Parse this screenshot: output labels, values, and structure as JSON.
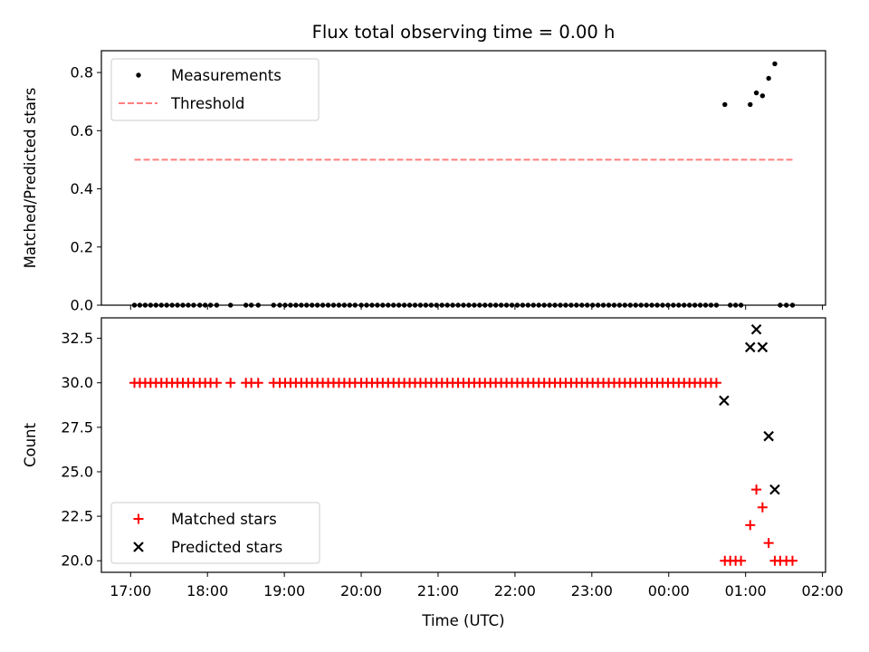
{
  "chart_data": [
    {
      "type": "scatter",
      "title": "Flux total observing time = 0.00 h",
      "xlabel": "",
      "ylabel": "Matched/Predicted stars",
      "xlim": [
        16.62,
        26.04
      ],
      "ylim": [
        0.0,
        0.875
      ],
      "yticks": [
        0.0,
        0.2,
        0.4,
        0.6,
        0.8
      ],
      "ytick_labels": [
        "0.0",
        "0.2",
        "0.4",
        "0.6",
        "0.8"
      ],
      "xticks": [
        17,
        18,
        19,
        20,
        21,
        22,
        23,
        24,
        25,
        26
      ],
      "show_xtick_labels": false,
      "legend": {
        "placement": "upper-left",
        "entries": [
          "Measurements",
          "Threshold"
        ]
      },
      "series": [
        {
          "name": "Measurements",
          "marker": "dot",
          "color": "#000000",
          "x": [
            17.05,
            17.12,
            17.19,
            17.26,
            17.33,
            17.4,
            17.47,
            17.54,
            17.61,
            17.68,
            17.75,
            17.82,
            17.9,
            17.97,
            18.04,
            18.12,
            18.3,
            18.5,
            18.57,
            18.66,
            18.86,
            18.94,
            19.01,
            19.08,
            19.15,
            19.22,
            19.29,
            19.36,
            19.43,
            19.5,
            19.57,
            19.64,
            19.71,
            19.78,
            19.85,
            19.92,
            20.0,
            20.07,
            20.14,
            20.21,
            20.28,
            20.35,
            20.42,
            20.49,
            20.56,
            20.63,
            20.7,
            20.77,
            20.84,
            20.91,
            20.98,
            21.05,
            21.12,
            21.19,
            21.26,
            21.33,
            21.4,
            21.47,
            21.54,
            21.61,
            21.68,
            21.75,
            21.82,
            21.89,
            21.96,
            22.03,
            22.1,
            22.17,
            22.24,
            22.31,
            22.38,
            22.45,
            22.52,
            22.59,
            22.66,
            22.73,
            22.8,
            22.87,
            22.94,
            23.01,
            23.08,
            23.15,
            23.22,
            23.29,
            23.36,
            23.43,
            23.5,
            23.57,
            23.64,
            23.71,
            23.78,
            23.85,
            23.92,
            23.99,
            24.06,
            24.13,
            24.2,
            24.27,
            24.34,
            24.41,
            24.48,
            24.55,
            24.62,
            24.73,
            24.8,
            24.87,
            24.94,
            25.06,
            25.14,
            25.22,
            25.3,
            25.38,
            25.45,
            25.53,
            25.61
          ],
          "y": [
            0,
            0,
            0,
            0,
            0,
            0,
            0,
            0,
            0,
            0,
            0,
            0,
            0,
            0,
            0,
            0,
            0,
            0,
            0,
            0,
            0,
            0,
            0,
            0,
            0,
            0,
            0,
            0,
            0,
            0,
            0,
            0,
            0,
            0,
            0,
            0,
            0,
            0,
            0,
            0,
            0,
            0,
            0,
            0,
            0,
            0,
            0,
            0,
            0,
            0,
            0,
            0,
            0,
            0,
            0,
            0,
            0,
            0,
            0,
            0,
            0,
            0,
            0,
            0,
            0,
            0,
            0,
            0,
            0,
            0,
            0,
            0,
            0,
            0,
            0,
            0,
            0,
            0,
            0,
            0,
            0,
            0,
            0,
            0,
            0,
            0,
            0,
            0,
            0,
            0,
            0,
            0,
            0,
            0,
            0,
            0,
            0,
            0,
            0,
            0,
            0,
            0,
            0,
            0.69,
            0,
            0,
            0,
            0.69,
            0.73,
            0.72,
            0.78,
            0.83,
            0,
            0,
            0
          ]
        },
        {
          "name": "Threshold",
          "style": "dashed",
          "color": "#ff7f7f",
          "x": [
            17.05,
            25.61
          ],
          "y": [
            0.5,
            0.5
          ]
        }
      ]
    },
    {
      "type": "scatter",
      "title": "",
      "xlabel": "Time (UTC)",
      "ylabel": "Count",
      "xlim": [
        16.62,
        26.04
      ],
      "ylim": [
        19.35,
        33.65
      ],
      "yticks": [
        20.0,
        22.5,
        25.0,
        27.5,
        30.0,
        32.5
      ],
      "ytick_labels": [
        "20.0",
        "22.5",
        "25.0",
        "27.5",
        "30.0",
        "32.5"
      ],
      "xticks": [
        17,
        18,
        19,
        20,
        21,
        22,
        23,
        24,
        25,
        26
      ],
      "xtick_labels": [
        "17:00",
        "18:00",
        "19:00",
        "20:00",
        "21:00",
        "22:00",
        "23:00",
        "00:00",
        "01:00",
        "02:00"
      ],
      "legend": {
        "placement": "lower-left",
        "entries": [
          "Matched stars",
          "Predicted stars"
        ]
      },
      "series": [
        {
          "name": "Matched stars",
          "marker": "plus",
          "color": "#ff0000",
          "x": [
            17.05,
            17.12,
            17.19,
            17.26,
            17.33,
            17.4,
            17.47,
            17.54,
            17.61,
            17.68,
            17.75,
            17.82,
            17.9,
            17.97,
            18.04,
            18.12,
            18.3,
            18.5,
            18.57,
            18.66,
            18.86,
            18.94,
            19.01,
            19.08,
            19.15,
            19.22,
            19.29,
            19.36,
            19.43,
            19.5,
            19.57,
            19.64,
            19.71,
            19.78,
            19.85,
            19.92,
            20.0,
            20.07,
            20.14,
            20.21,
            20.28,
            20.35,
            20.42,
            20.49,
            20.56,
            20.63,
            20.7,
            20.77,
            20.84,
            20.91,
            20.98,
            21.05,
            21.12,
            21.19,
            21.26,
            21.33,
            21.4,
            21.47,
            21.54,
            21.61,
            21.68,
            21.75,
            21.82,
            21.89,
            21.96,
            22.03,
            22.1,
            22.17,
            22.24,
            22.31,
            22.38,
            22.45,
            22.52,
            22.59,
            22.66,
            22.73,
            22.8,
            22.87,
            22.94,
            23.01,
            23.08,
            23.15,
            23.22,
            23.29,
            23.36,
            23.43,
            23.5,
            23.57,
            23.64,
            23.71,
            23.78,
            23.85,
            23.92,
            23.99,
            24.06,
            24.13,
            24.2,
            24.27,
            24.34,
            24.41,
            24.48,
            24.55,
            24.62,
            24.73,
            24.8,
            24.87,
            24.94,
            25.06,
            25.14,
            25.22,
            25.3,
            25.38,
            25.45,
            25.53,
            25.61
          ],
          "y": [
            30,
            30,
            30,
            30,
            30,
            30,
            30,
            30,
            30,
            30,
            30,
            30,
            30,
            30,
            30,
            30,
            30,
            30,
            30,
            30,
            30,
            30,
            30,
            30,
            30,
            30,
            30,
            30,
            30,
            30,
            30,
            30,
            30,
            30,
            30,
            30,
            30,
            30,
            30,
            30,
            30,
            30,
            30,
            30,
            30,
            30,
            30,
            30,
            30,
            30,
            30,
            30,
            30,
            30,
            30,
            30,
            30,
            30,
            30,
            30,
            30,
            30,
            30,
            30,
            30,
            30,
            30,
            30,
            30,
            30,
            30,
            30,
            30,
            30,
            30,
            30,
            30,
            30,
            30,
            30,
            30,
            30,
            30,
            30,
            30,
            30,
            30,
            30,
            30,
            30,
            30,
            30,
            30,
            30,
            30,
            30,
            30,
            30,
            30,
            30,
            30,
            30,
            30,
            20,
            20,
            20,
            20,
            22,
            24,
            23,
            21,
            20,
            20,
            20,
            20
          ]
        },
        {
          "name": "Predicted stars",
          "marker": "x",
          "color": "#000000",
          "x": [
            24.72,
            25.06,
            25.14,
            25.22,
            25.3,
            25.38
          ],
          "y": [
            29,
            32,
            33,
            32,
            27,
            24
          ]
        }
      ]
    }
  ]
}
